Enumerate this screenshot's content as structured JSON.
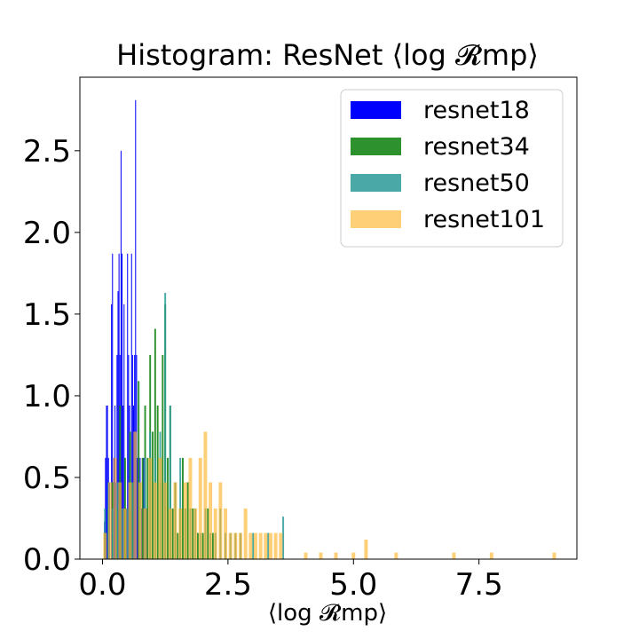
{
  "chart_data": {
    "type": "histogram",
    "title": "Histogram: ResNet ⟨log 𝓡mp⟩",
    "xlabel": "⟨log 𝓡mp⟩",
    "ylabel": "",
    "xlim": [
      -0.45,
      9.45
    ],
    "ylim": [
      0,
      2.95
    ],
    "xticks": [
      "0.0",
      "2.5",
      "5.0",
      "7.5"
    ],
    "xtick_values": [
      0,
      2.5,
      5,
      7.5
    ],
    "yticks": [
      "0.0",
      "0.5",
      "1.0",
      "1.5",
      "2.0",
      "2.5"
    ],
    "ytick_values": [
      0,
      0.5,
      1,
      1.5,
      2,
      2.5
    ],
    "legend_position": "top-right",
    "grid": false,
    "series": [
      {
        "name": "resnet18",
        "color": "#0000ff",
        "opacity": 1.0,
        "bin_width": 0.018,
        "bins": [
          [
            0.04,
            0.23
          ],
          [
            0.06,
            0.62
          ],
          [
            0.08,
            0.94
          ],
          [
            0.1,
            0.94
          ],
          [
            0.12,
            0.62
          ],
          [
            0.14,
            0.47
          ],
          [
            0.18,
            1.56
          ],
          [
            0.2,
            1.87
          ],
          [
            0.23,
            0.62
          ],
          [
            0.25,
            0.94
          ],
          [
            0.27,
            0.47
          ],
          [
            0.29,
            1.25
          ],
          [
            0.31,
            1.64
          ],
          [
            0.33,
            1.87
          ],
          [
            0.35,
            1.25
          ],
          [
            0.37,
            2.5
          ],
          [
            0.39,
            1.87
          ],
          [
            0.41,
            0.94
          ],
          [
            0.43,
            1.56
          ],
          [
            0.45,
            0.62
          ],
          [
            0.48,
            0.31
          ],
          [
            0.5,
            1.87
          ],
          [
            0.52,
            1.25
          ],
          [
            0.54,
            0.94
          ],
          [
            0.56,
            0.31
          ],
          [
            0.58,
            1.87
          ],
          [
            0.6,
            1.25
          ],
          [
            0.62,
            0.94
          ],
          [
            0.64,
            1.25
          ],
          [
            0.66,
            2.81
          ],
          [
            0.68,
            1.25
          ],
          [
            0.7,
            0.62
          ],
          [
            0.72,
            0.94
          ],
          [
            0.75,
            0.62
          ],
          [
            0.78,
            0.31
          ],
          [
            0.82,
            0.62
          ],
          [
            0.88,
            0.31
          ],
          [
            0.95,
            0.62
          ]
        ]
      },
      {
        "name": "resnet34",
        "color": "#228b22",
        "opacity": 0.95,
        "bin_width": 0.034,
        "bins": [
          [
            0.05,
            0.16
          ],
          [
            0.12,
            0.31
          ],
          [
            0.2,
            0.47
          ],
          [
            0.28,
            0.31
          ],
          [
            0.35,
            0.94
          ],
          [
            0.45,
            0.62
          ],
          [
            0.55,
            0.78
          ],
          [
            0.6,
            0.47
          ],
          [
            0.72,
            1.09
          ],
          [
            0.8,
            0.62
          ],
          [
            0.85,
            0.94
          ],
          [
            0.9,
            0.62
          ],
          [
            0.95,
            1.25
          ],
          [
            1.0,
            0.78
          ],
          [
            1.05,
            1.41
          ],
          [
            1.1,
            0.94
          ],
          [
            1.15,
            0.47
          ],
          [
            1.2,
            1.25
          ],
          [
            1.25,
            1.56
          ],
          [
            1.3,
            0.62
          ],
          [
            1.35,
            0.94
          ],
          [
            1.4,
            0.31
          ],
          [
            1.45,
            0.47
          ],
          [
            1.5,
            0.16
          ],
          [
            1.55,
            0.31
          ],
          [
            1.6,
            0.62
          ],
          [
            1.65,
            0.31
          ],
          [
            1.7,
            0.47
          ],
          [
            1.8,
            0.31
          ],
          [
            1.9,
            0.16
          ],
          [
            2.0,
            0.16
          ],
          [
            2.1,
            0.31
          ],
          [
            2.2,
            0.16
          ]
        ]
      },
      {
        "name": "resnet50",
        "color": "#2a9a96",
        "opacity": 0.85,
        "bin_width": 0.034,
        "bins": [
          [
            0.05,
            0.31
          ],
          [
            0.12,
            0.47
          ],
          [
            0.2,
            0.31
          ],
          [
            0.3,
            0.47
          ],
          [
            0.4,
            0.31
          ],
          [
            0.5,
            0.31
          ],
          [
            0.6,
            0.47
          ],
          [
            0.75,
            0.47
          ],
          [
            0.85,
            0.62
          ],
          [
            0.95,
            0.78
          ],
          [
            1.05,
            0.62
          ],
          [
            1.15,
            0.78
          ],
          [
            1.25,
            1.63
          ],
          [
            1.35,
            0.94
          ],
          [
            1.45,
            0.47
          ],
          [
            1.55,
            0.62
          ],
          [
            1.65,
            0.31
          ],
          [
            1.75,
            0.31
          ],
          [
            1.85,
            0.31
          ],
          [
            1.95,
            0.16
          ],
          [
            2.05,
            0.31
          ],
          [
            2.15,
            0.16
          ],
          [
            2.25,
            0.16
          ],
          [
            2.35,
            0.31
          ],
          [
            2.45,
            0.16
          ],
          [
            2.55,
            0.16
          ],
          [
            2.65,
            0.16
          ],
          [
            2.75,
            0.16
          ],
          [
            3.0,
            0.16
          ],
          [
            3.3,
            0.16
          ],
          [
            3.6,
            0.26
          ]
        ]
      },
      {
        "name": "resnet101",
        "color": "#ffb52e",
        "opacity": 0.65,
        "bin_width": 0.07,
        "bins": [
          [
            0.05,
            0.16
          ],
          [
            0.15,
            0.47
          ],
          [
            0.25,
            0.62
          ],
          [
            0.35,
            0.47
          ],
          [
            0.45,
            0.31
          ],
          [
            0.55,
            0.47
          ],
          [
            0.65,
            0.78
          ],
          [
            0.75,
            0.47
          ],
          [
            0.85,
            0.31
          ],
          [
            0.95,
            0.62
          ],
          [
            1.05,
            0.47
          ],
          [
            1.15,
            0.62
          ],
          [
            1.25,
            0.47
          ],
          [
            1.35,
            0.31
          ],
          [
            1.45,
            0.47
          ],
          [
            1.55,
            0.31
          ],
          [
            1.65,
            0.47
          ],
          [
            1.75,
            0.62
          ],
          [
            1.85,
            0.31
          ],
          [
            1.95,
            0.62
          ],
          [
            2.05,
            0.78
          ],
          [
            2.15,
            0.47
          ],
          [
            2.25,
            0.31
          ],
          [
            2.35,
            0.47
          ],
          [
            2.45,
            0.31
          ],
          [
            2.55,
            0.16
          ],
          [
            2.65,
            0.16
          ],
          [
            2.75,
            0.16
          ],
          [
            2.85,
            0.31
          ],
          [
            2.95,
            0.16
          ],
          [
            3.05,
            0.16
          ],
          [
            3.15,
            0.16
          ],
          [
            3.25,
            0.16
          ],
          [
            3.35,
            0.16
          ],
          [
            3.45,
            0.16
          ],
          [
            3.55,
            0.16
          ],
          [
            4.05,
            0.04
          ],
          [
            4.35,
            0.04
          ],
          [
            4.65,
            0.04
          ],
          [
            5.0,
            0.04
          ],
          [
            5.25,
            0.12
          ],
          [
            5.85,
            0.04
          ],
          [
            7.0,
            0.04
          ],
          [
            7.75,
            0.04
          ],
          [
            9.0,
            0.04
          ]
        ]
      }
    ]
  }
}
